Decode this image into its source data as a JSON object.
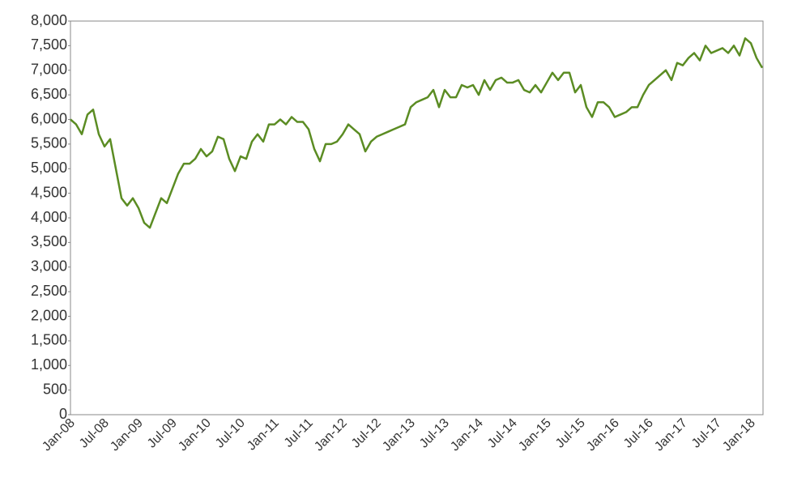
{
  "chart_data": {
    "type": "line",
    "x": [
      "Jan-08",
      "Feb-08",
      "Mar-08",
      "Apr-08",
      "May-08",
      "Jun-08",
      "Jul-08",
      "Aug-08",
      "Sep-08",
      "Oct-08",
      "Nov-08",
      "Dec-08",
      "Jan-09",
      "Feb-09",
      "Mar-09",
      "Apr-09",
      "May-09",
      "Jun-09",
      "Jul-09",
      "Aug-09",
      "Sep-09",
      "Oct-09",
      "Nov-09",
      "Dec-09",
      "Jan-10",
      "Feb-10",
      "Mar-10",
      "Apr-10",
      "May-10",
      "Jun-10",
      "Jul-10",
      "Aug-10",
      "Sep-10",
      "Oct-10",
      "Nov-10",
      "Dec-10",
      "Jan-11",
      "Feb-11",
      "Mar-11",
      "Apr-11",
      "May-11",
      "Jun-11",
      "Jul-11",
      "Aug-11",
      "Sep-11",
      "Oct-11",
      "Nov-11",
      "Dec-11",
      "Jan-12",
      "Feb-12",
      "Mar-12",
      "Apr-12",
      "May-12",
      "Jun-12",
      "Jul-12",
      "Aug-12",
      "Sep-12",
      "Oct-12",
      "Nov-12",
      "Dec-12",
      "Jan-13",
      "Feb-13",
      "Mar-13",
      "Apr-13",
      "May-13",
      "Jun-13",
      "Jul-13",
      "Aug-13",
      "Sep-13",
      "Oct-13",
      "Nov-13",
      "Dec-13",
      "Jan-14",
      "Feb-14",
      "Mar-14",
      "Apr-14",
      "May-14",
      "Jun-14",
      "Jul-14",
      "Aug-14",
      "Sep-14",
      "Oct-14",
      "Nov-14",
      "Dec-14",
      "Jan-15",
      "Feb-15",
      "Mar-15",
      "Apr-15",
      "May-15",
      "Jun-15",
      "Jul-15",
      "Aug-15",
      "Sep-15",
      "Oct-15",
      "Nov-15",
      "Dec-15",
      "Jan-16",
      "Feb-16",
      "Mar-16",
      "Apr-16",
      "May-16",
      "Jun-16",
      "Jul-16",
      "Aug-16",
      "Sep-16",
      "Oct-16",
      "Nov-16",
      "Dec-16",
      "Jan-17",
      "Feb-17",
      "Mar-17",
      "Apr-17",
      "May-17",
      "Jun-17",
      "Jul-17",
      "Aug-17",
      "Sep-17",
      "Oct-17",
      "Nov-17",
      "Dec-17",
      "Jan-18",
      "Feb-18",
      "Mar-18"
    ],
    "values": [
      6000,
      5900,
      5700,
      6100,
      6200,
      5700,
      5450,
      5600,
      5000,
      4400,
      4250,
      4400,
      4200,
      3900,
      3800,
      4100,
      4400,
      4300,
      4600,
      4900,
      5100,
      5100,
      5200,
      5400,
      5250,
      5350,
      5650,
      5600,
      5200,
      4950,
      5250,
      5200,
      5550,
      5700,
      5550,
      5900,
      5900,
      6000,
      5900,
      6050,
      5950,
      5950,
      5800,
      5400,
      5150,
      5500,
      5500,
      5550,
      5700,
      5900,
      5800,
      5700,
      5350,
      5550,
      5650,
      5700,
      5750,
      5800,
      5850,
      5900,
      6250,
      6350,
      6400,
      6450,
      6600,
      6250,
      6600,
      6450,
      6450,
      6700,
      6650,
      6700,
      6500,
      6800,
      6600,
      6800,
      6850,
      6750,
      6750,
      6800,
      6600,
      6550,
      6700,
      6550,
      6750,
      6950,
      6800,
      6950,
      6950,
      6550,
      6700,
      6250,
      6050,
      6350,
      6350,
      6250,
      6050,
      6100,
      6150,
      6250,
      6250,
      6500,
      6700,
      6800,
      6900,
      7000,
      6800,
      7150,
      7100,
      7250,
      7350,
      7200,
      7500,
      7350,
      7400,
      7450,
      7350,
      7500,
      7300,
      7650,
      7550,
      7250,
      7050
    ],
    "color": "#5b8c23",
    "xticks": [
      "Jan-08",
      "Jul-08",
      "Jan-09",
      "Jul-09",
      "Jan-10",
      "Jul-10",
      "Jan-11",
      "Jul-11",
      "Jan-12",
      "Jul-12",
      "Jan-13",
      "Jul-13",
      "Jan-14",
      "Jul-14",
      "Jan-15",
      "Jul-15",
      "Jan-16",
      "Jul-16",
      "Jan-17",
      "Jul-17",
      "Jan-18"
    ],
    "ylim": [
      0,
      8000
    ],
    "yticks": [
      0,
      500,
      {
        "value": 1000,
        "label": "1,000"
      },
      {
        "value": 1500,
        "label": "1,500"
      },
      {
        "value": 2000,
        "label": "2,000"
      },
      {
        "value": 2500,
        "label": "2,500"
      },
      {
        "value": 3000,
        "label": "3,000"
      },
      {
        "value": 3500,
        "label": "3,500"
      },
      {
        "value": 4000,
        "label": "4,000"
      },
      {
        "value": 4500,
        "label": "4,500"
      },
      {
        "value": 5000,
        "label": "5,000"
      },
      {
        "value": 5500,
        "label": "5,500"
      },
      {
        "value": 6000,
        "label": "6,000"
      },
      {
        "value": 6500,
        "label": "6,500"
      },
      {
        "value": 7000,
        "label": "7,000"
      },
      {
        "value": 7500,
        "label": "7,500"
      },
      {
        "value": 8000,
        "label": "8,000"
      }
    ],
    "grid": false
  }
}
